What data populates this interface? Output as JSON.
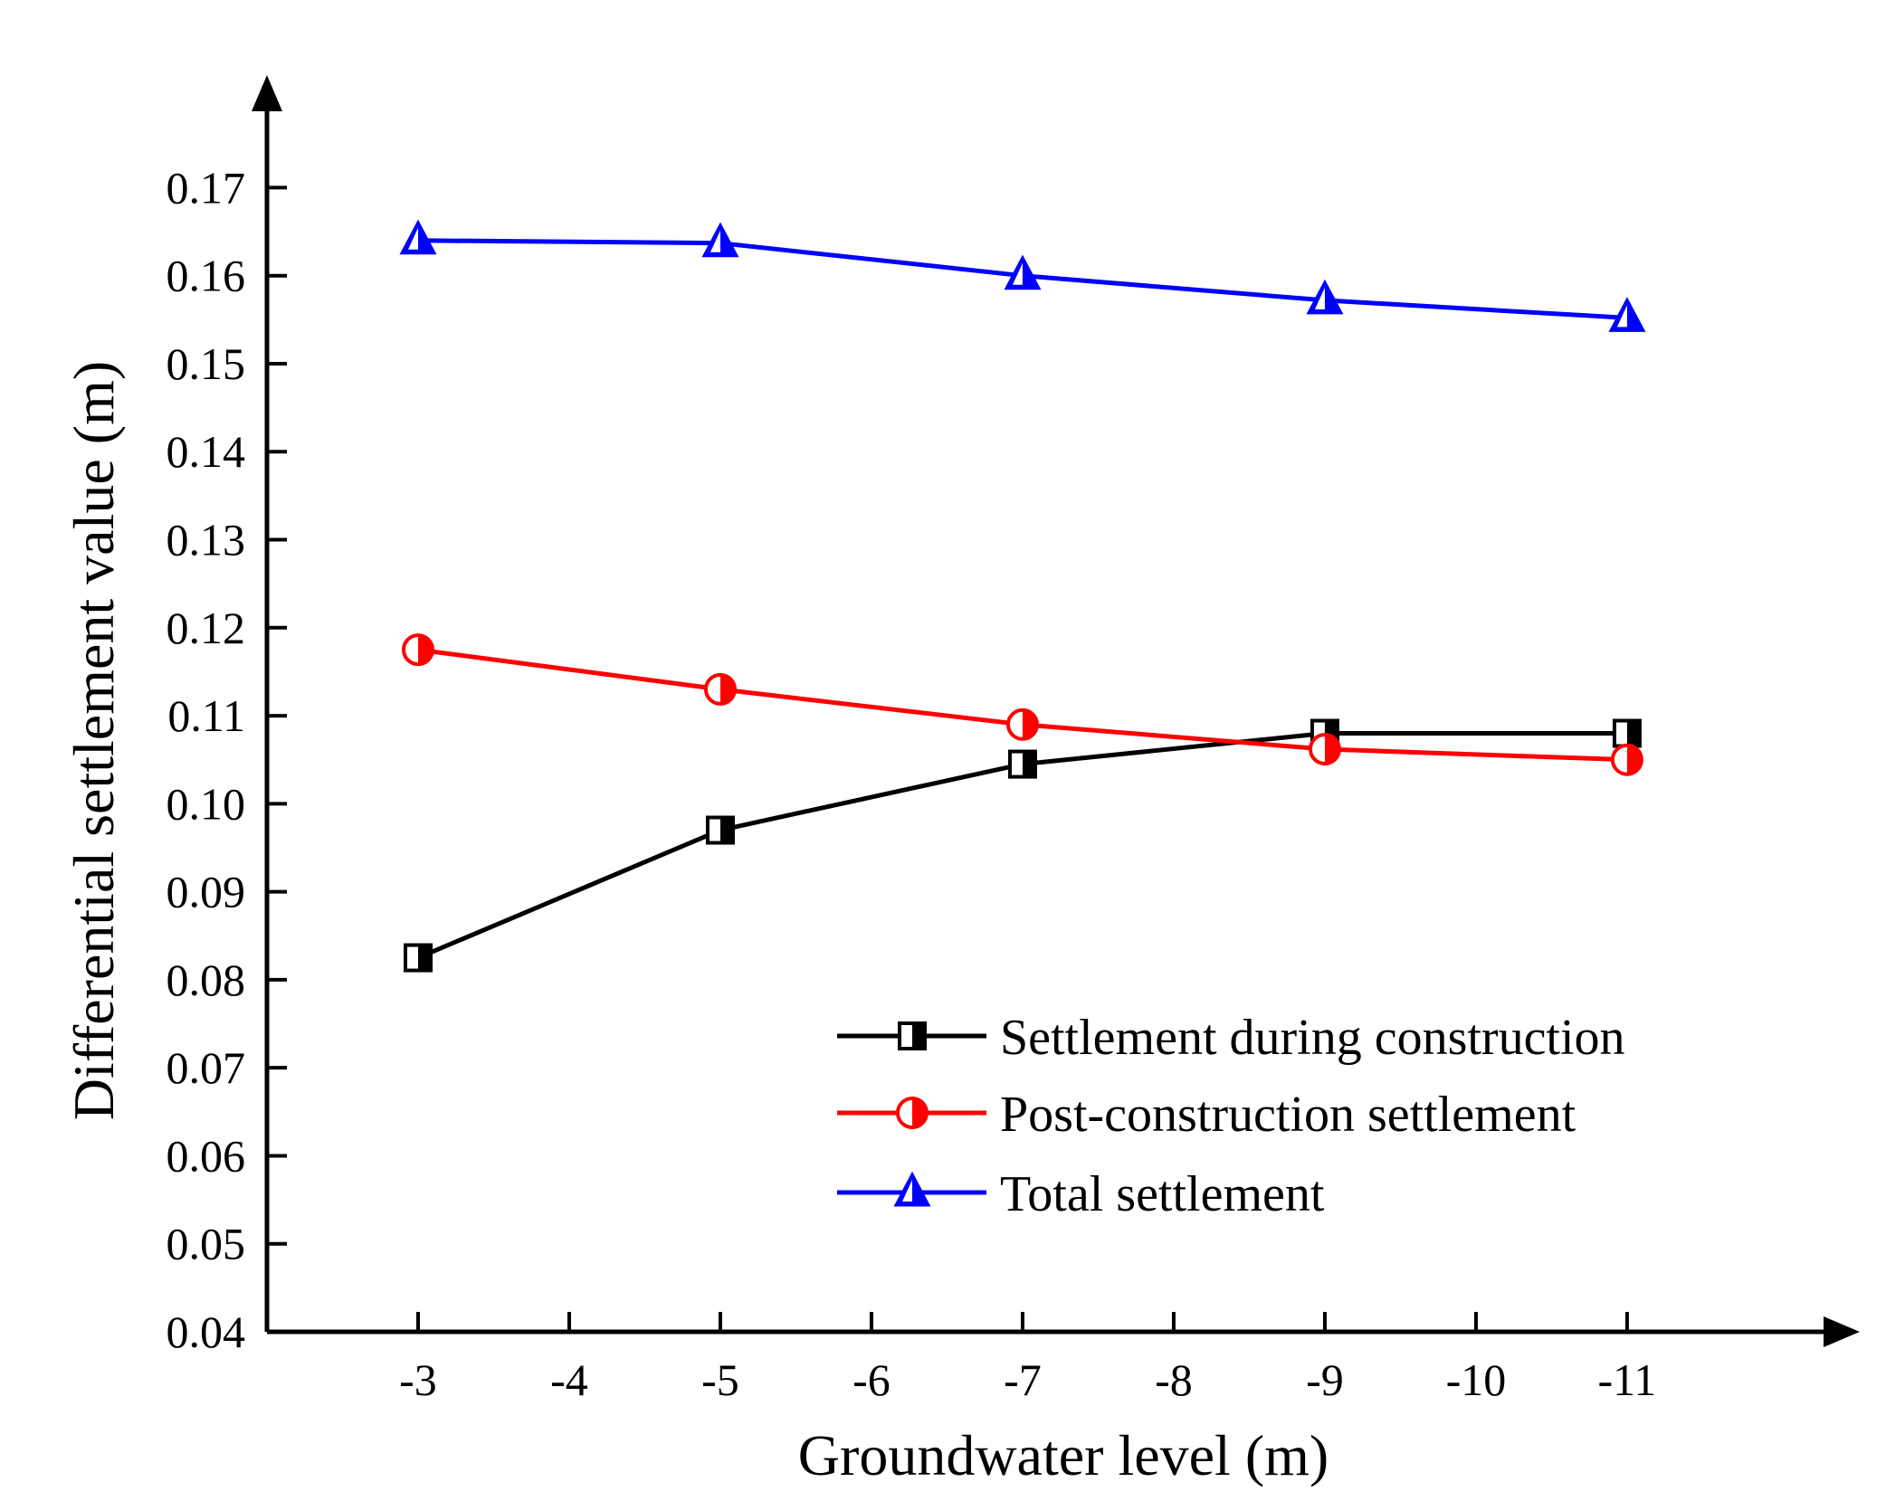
{
  "chart_data": {
    "type": "line",
    "xlabel": "Groundwater level (m)",
    "ylabel": "Differential settlement value (m)",
    "x_ticks": [
      "-3",
      "-4",
      "-5",
      "-6",
      "-7",
      "-8",
      "-9",
      "-10",
      "-11"
    ],
    "y_ticks": [
      "0.04",
      "0.05",
      "0.06",
      "0.07",
      "0.08",
      "0.09",
      "0.10",
      "0.11",
      "0.12",
      "0.13",
      "0.14",
      "0.15",
      "0.16",
      "0.17"
    ],
    "xlim": [
      -2,
      -12.3
    ],
    "ylim": [
      0.04,
      0.1795
    ],
    "grid": false,
    "legend_position": "bottom-right",
    "x": [
      -3,
      -5,
      -7,
      -9,
      -11
    ],
    "series": [
      {
        "name": "Settlement during construction",
        "color": "#000000",
        "marker": "half-filled-square",
        "values": [
          0.0825,
          0.097,
          0.1045,
          0.108,
          0.108
        ]
      },
      {
        "name": "Post-construction settlement",
        "color": "#ff0000",
        "marker": "half-filled-circle",
        "values": [
          0.1175,
          0.113,
          0.109,
          0.1062,
          0.105
        ]
      },
      {
        "name": "Total settlement",
        "color": "#0000ff",
        "marker": "half-filled-triangle",
        "values": [
          0.164,
          0.1637,
          0.16,
          0.1572,
          0.1552
        ]
      }
    ]
  }
}
